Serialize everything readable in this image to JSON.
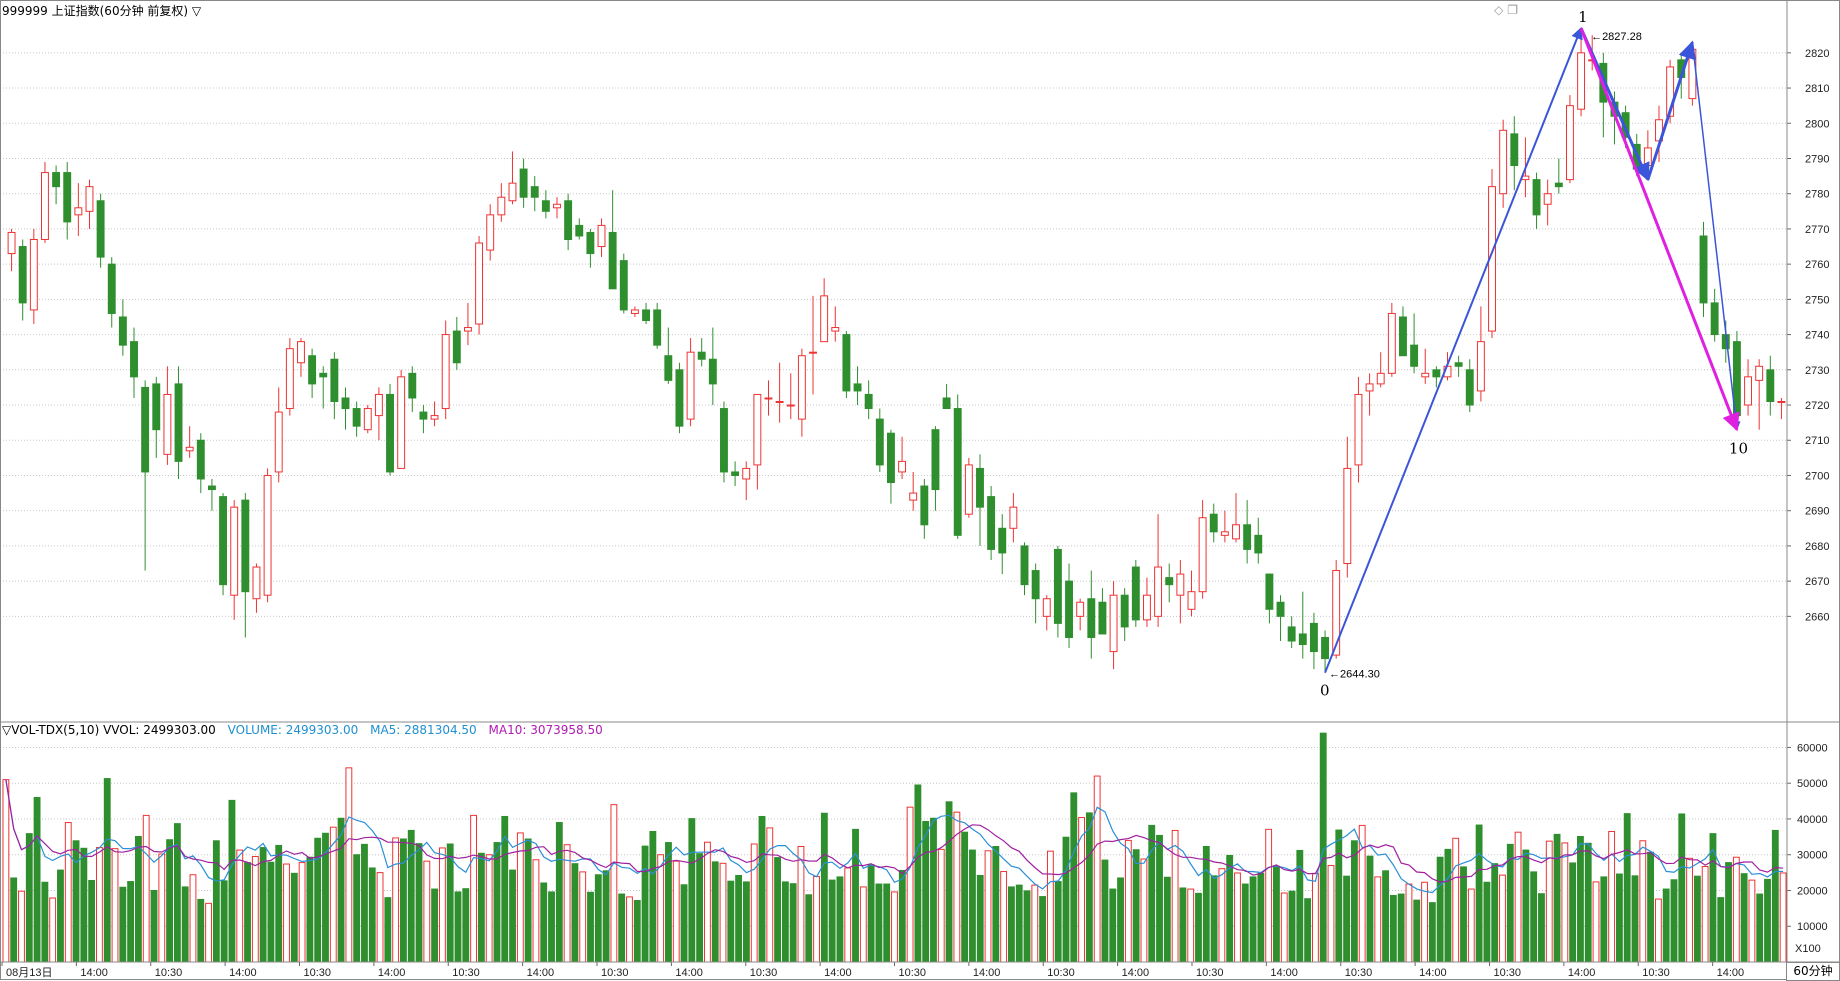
{
  "header": {
    "title": "999999 上证指数(60分钟 前复权) ▽"
  },
  "volume_legend": {
    "indicator": "▽VOL-TDX(5,10) VVOL: 2499303.00",
    "volume": "VOLUME: 2499303.00",
    "ma5": "MA5: 2881304.50",
    "ma10": "MA10: 3073958.50"
  },
  "period_badge": "60分钟",
  "volume_unit": "X100",
  "colors": {
    "up": "#ee3333",
    "down": "#2f8f2f",
    "ma5": "#2a8fd6",
    "ma10": "#a020a0",
    "wave_blue": "#3a55d9",
    "wave_magenta": "#e020e0",
    "grid": "#c8c8c8"
  },
  "chart_data": [
    {
      "type": "candlestick",
      "title": "999999 上证指数(60分钟 前复权) ▽",
      "ylim": [
        2630,
        2835
      ],
      "y_ticks": [
        2660,
        2670,
        2680,
        2690,
        2700,
        2710,
        2720,
        2730,
        2740,
        2750,
        2760,
        2770,
        2780,
        2790,
        2800,
        2810,
        2820
      ],
      "x_tick_labels": [
        "08月13日",
        "14:00",
        "10:30",
        "14:00",
        "10:30",
        "14:00",
        "10:30",
        "14:00",
        "10:30",
        "14:00",
        "10:30",
        "14:00",
        "10:30",
        "14:00",
        "10:30",
        "14:00",
        "10:30",
        "14:00",
        "10:30",
        "14:00",
        "10:30",
        "14:00",
        "10:30",
        "14:00"
      ],
      "grid": true,
      "candles": [
        [
          2763,
          2769,
          2770,
          2758
        ],
        [
          2765,
          2749,
          2767,
          2744
        ],
        [
          2747,
          2767,
          2770,
          2743
        ],
        [
          2767,
          2786,
          2789,
          2766
        ],
        [
          2786,
          2782,
          2788,
          2777
        ],
        [
          2786,
          2772,
          2789,
          2767
        ],
        [
          2774,
          2776,
          2783,
          2768
        ],
        [
          2775,
          2782,
          2784,
          2770
        ],
        [
          2778,
          2762,
          2780,
          2759
        ],
        [
          2760,
          2746,
          2762,
          2742
        ],
        [
          2745,
          2737,
          2750,
          2734
        ],
        [
          2738,
          2728,
          2742,
          2722
        ],
        [
          2725,
          2701,
          2727,
          2673
        ],
        [
          2726,
          2713,
          2728,
          2705
        ],
        [
          2706,
          2723,
          2731,
          2703
        ],
        [
          2726,
          2704,
          2731,
          2699
        ],
        [
          2707,
          2708,
          2714,
          2705
        ],
        [
          2710,
          2699,
          2712,
          2695
        ],
        [
          2697,
          2696,
          2699,
          2690
        ],
        [
          2694,
          2669,
          2695,
          2666
        ],
        [
          2666,
          2691,
          2693,
          2659
        ],
        [
          2693,
          2667,
          2695,
          2654
        ],
        [
          2665,
          2674,
          2675,
          2661
        ],
        [
          2666,
          2700,
          2702,
          2664
        ],
        [
          2701,
          2718,
          2725,
          2698
        ],
        [
          2719,
          2736,
          2739,
          2717
        ],
        [
          2732,
          2738,
          2739,
          2728
        ],
        [
          2734,
          2726,
          2736,
          2722
        ],
        [
          2729,
          2728,
          2731,
          2719
        ],
        [
          2733,
          2721,
          2735,
          2716
        ],
        [
          2722,
          2719,
          2725,
          2713
        ],
        [
          2719,
          2714,
          2721,
          2711
        ],
        [
          2713,
          2719,
          2720,
          2712
        ],
        [
          2717,
          2723,
          2725,
          2710
        ],
        [
          2723,
          2701,
          2726,
          2700
        ],
        [
          2702,
          2728,
          2730,
          2702
        ],
        [
          2729,
          2722,
          2731,
          2718
        ],
        [
          2718,
          2716,
          2720,
          2712
        ],
        [
          2716,
          2717,
          2721,
          2714
        ],
        [
          2719,
          2740,
          2744,
          2716
        ],
        [
          2741,
          2732,
          2745,
          2730
        ],
        [
          2741,
          2742,
          2749,
          2737
        ],
        [
          2743,
          2766,
          2768,
          2740
        ],
        [
          2764,
          2774,
          2777,
          2761
        ],
        [
          2774,
          2779,
          2783,
          2772
        ],
        [
          2778,
          2783,
          2792,
          2777
        ],
        [
          2787,
          2779,
          2790,
          2776
        ],
        [
          2782,
          2779,
          2785,
          2775
        ],
        [
          2778,
          2775,
          2781,
          2773
        ],
        [
          2776,
          2777,
          2779,
          2773
        ],
        [
          2778,
          2767,
          2780,
          2764
        ],
        [
          2771,
          2768,
          2773,
          2767
        ],
        [
          2769,
          2763,
          2770,
          2759
        ],
        [
          2765,
          2771,
          2773,
          2762
        ],
        [
          2769,
          2753,
          2781,
          2761
        ],
        [
          2761,
          2747,
          2763,
          2746
        ],
        [
          2746,
          2747,
          2748,
          2745
        ],
        [
          2747,
          2744,
          2749,
          2743
        ],
        [
          2747,
          2737,
          2749,
          2736
        ],
        [
          2734,
          2727,
          2742,
          2726
        ],
        [
          2730,
          2714,
          2732,
          2712
        ],
        [
          2716,
          2735,
          2739,
          2714
        ],
        [
          2735,
          2733,
          2739,
          2731
        ],
        [
          2733,
          2726,
          2742,
          2720
        ],
        [
          2719,
          2701,
          2721,
          2698
        ],
        [
          2701,
          2700,
          2704,
          2697
        ],
        [
          2699,
          2702,
          2704,
          2693
        ],
        [
          2703,
          2723,
          2723,
          2696
        ],
        [
          2722,
          2722,
          2727,
          2717
        ],
        [
          2721,
          2721,
          2732,
          2715
        ],
        [
          2720,
          2720,
          2729,
          2716
        ],
        [
          2716,
          2734,
          2736,
          2711
        ],
        [
          2735,
          2735,
          2751,
          2723
        ],
        [
          2738,
          2751,
          2756,
          2746
        ],
        [
          2741,
          2742,
          2748,
          2738
        ],
        [
          2740,
          2724,
          2741,
          2722
        ],
        [
          2726,
          2724,
          2731,
          2720
        ],
        [
          2723,
          2719,
          2727,
          2716
        ],
        [
          2716,
          2703,
          2719,
          2701
        ],
        [
          2712,
          2698,
          2713,
          2692
        ],
        [
          2701,
          2704,
          2711,
          2699
        ],
        [
          2693,
          2695,
          2701,
          2690
        ],
        [
          2697,
          2686,
          2699,
          2682
        ],
        [
          2713,
          2696,
          2714,
          2690
        ],
        [
          2722,
          2719,
          2726,
          2719
        ],
        [
          2719,
          2683,
          2723,
          2682
        ],
        [
          2689,
          2703,
          2705,
          2688
        ],
        [
          2702,
          2691,
          2706,
          2680
        ],
        [
          2694,
          2679,
          2697,
          2676
        ],
        [
          2685,
          2678,
          2689,
          2672
        ],
        [
          2685,
          2691,
          2695,
          2681
        ],
        [
          2680,
          2669,
          2681,
          2666
        ],
        [
          2673,
          2665,
          2675,
          2658
        ],
        [
          2660,
          2665,
          2666,
          2656
        ],
        [
          2679,
          2658,
          2680,
          2654
        ],
        [
          2670,
          2654,
          2675,
          2651
        ],
        [
          2660,
          2664,
          2665,
          2656
        ],
        [
          2665,
          2654,
          2673,
          2648
        ],
        [
          2664,
          2655,
          2668,
          2655
        ],
        [
          2650,
          2666,
          2670,
          2645
        ],
        [
          2666,
          2657,
          2668,
          2653
        ],
        [
          2674,
          2659,
          2676,
          2657
        ],
        [
          2659,
          2666,
          2671,
          2657
        ],
        [
          2660,
          2674,
          2689,
          2657
        ],
        [
          2671,
          2669,
          2675,
          2664
        ],
        [
          2666,
          2672,
          2676,
          2658
        ],
        [
          2662,
          2667,
          2673,
          2660
        ],
        [
          2667,
          2688,
          2693,
          2665
        ],
        [
          2689,
          2684,
          2692,
          2681
        ],
        [
          2683,
          2684,
          2690,
          2681
        ],
        [
          2682,
          2686,
          2695,
          2681
        ],
        [
          2686,
          2679,
          2693,
          2675
        ],
        [
          2683,
          2678,
          2688,
          2675
        ],
        [
          2672,
          2662,
          2671,
          2658
        ],
        [
          2664,
          2660,
          2666,
          2653
        ],
        [
          2657,
          2653,
          2660,
          2651
        ],
        [
          2655,
          2652,
          2667,
          2648
        ],
        [
          2658,
          2650,
          2661,
          2645
        ],
        [
          2654,
          2648,
          2656,
          2644
        ],
        [
          2649,
          2673,
          2676,
          2648
        ],
        [
          2675,
          2702,
          2711,
          2671
        ],
        [
          2703,
          2723,
          2728,
          2698
        ],
        [
          2724,
          2726,
          2729,
          2717
        ],
        [
          2726,
          2729,
          2735,
          2725
        ],
        [
          2729,
          2746,
          2749,
          2728
        ],
        [
          2745,
          2734,
          2748,
          2734
        ],
        [
          2737,
          2731,
          2746,
          2729
        ],
        [
          2728,
          2729,
          2736,
          2726
        ],
        [
          2730,
          2728,
          2731,
          2725
        ],
        [
          2728,
          2731,
          2735,
          2727
        ],
        [
          2732,
          2731,
          2734,
          2728
        ],
        [
          2730,
          2720,
          2733,
          2718
        ],
        [
          2724,
          2738,
          2748,
          2721
        ],
        [
          2741,
          2782,
          2787,
          2739
        ],
        [
          2780,
          2798,
          2801,
          2776
        ],
        [
          2797,
          2788,
          2802,
          2781
        ],
        [
          2784,
          2785,
          2796,
          2779
        ],
        [
          2784,
          2774,
          2786,
          2770
        ],
        [
          2777,
          2780,
          2784,
          2771
        ],
        [
          2783,
          2782,
          2790,
          2780
        ],
        [
          2784,
          2805,
          2808,
          2783
        ],
        [
          2804,
          2820,
          2827,
          2802
        ],
        [
          2818,
          2818,
          2825,
          2815
        ],
        [
          2817,
          2806,
          2820,
          2796
        ],
        [
          2806,
          2802,
          2809,
          2794
        ],
        [
          2803,
          2796,
          2805,
          2793
        ],
        [
          2794,
          2787,
          2797,
          2785
        ],
        [
          2788,
          2793,
          2798,
          2784
        ],
        [
          2795,
          2801,
          2805,
          2789
        ],
        [
          2802,
          2816,
          2818,
          2800
        ],
        [
          2818,
          2813,
          2820,
          2807
        ],
        [
          2807,
          2821,
          2823,
          2805
        ],
        [
          2768,
          2749,
          2772,
          2745
        ],
        [
          2749,
          2740,
          2753,
          2738
        ],
        [
          2740,
          2736,
          2744,
          2732
        ],
        [
          2738,
          2717,
          2741,
          2713
        ],
        [
          2720,
          2728,
          2733,
          2717
        ],
        [
          2727,
          2731,
          2733,
          2713
        ],
        [
          2730,
          2721,
          2734,
          2717
        ],
        [
          2721,
          2721,
          2722,
          2716
        ]
      ],
      "annotations": [
        {
          "label": "1",
          "value_label": "2827.28"
        },
        {
          "label": "0",
          "value_label": "2644.30"
        },
        {
          "label": "10",
          "value_label": ""
        }
      ]
    },
    {
      "type": "bar",
      "title": "▽VOL-TDX(5,10)",
      "ylim": [
        0,
        66000
      ],
      "y_ticks": [
        10000,
        20000,
        30000,
        40000,
        50000,
        60000
      ],
      "series": [
        {
          "name": "VOLUME",
          "values": [
            51000,
            23500,
            19800,
            35900,
            46000,
            22300,
            17900,
            25700,
            39000,
            33900,
            31800,
            22800,
            32000,
            51300,
            31700,
            20900,
            22500,
            35100,
            41000,
            20000,
            30200,
            34200,
            38700,
            21000,
            24400,
            17500,
            16400,
            33900,
            22700,
            45200,
            31300,
            27800,
            29500,
            32000,
            27900,
            32600,
            27400,
            24800,
            27800,
            29300,
            34600,
            36000,
            37700,
            40200,
            54300,
            30000,
            32900,
            26300,
            25000,
            18000,
            34700,
            34400,
            36800,
            33100,
            28200,
            20400,
            31900,
            33000,
            19600,
            20500,
            41000,
            30400,
            30000,
            33400,
            40700,
            25700,
            36100,
            34400,
            28600,
            22100,
            19600,
            39000,
            32800,
            27500,
            25200,
            19500,
            24400,
            25500,
            44000,
            19000,
            18200,
            17200,
            32400,
            36500,
            30000,
            33400,
            28200,
            21600,
            40100,
            30300,
            33500,
            28000,
            27600,
            22600,
            24200,
            22400,
            33000,
            40700,
            37500,
            29200,
            22400,
            21900,
            32300,
            18800,
            23900,
            41600,
            22900,
            23800,
            26300,
            37100,
            21000,
            27200,
            21800,
            21800,
            19600,
            25600,
            43300,
            49500,
            39300,
            40200,
            31500,
            44800,
            41900,
            36300,
            31300,
            24200,
            31100,
            32300,
            25300,
            21000,
            21500,
            19900,
            21500,
            18300,
            31000,
            22500,
            34900,
            47300,
            40400,
            41700,
            52000,
            28500,
            20400,
            23500,
            34000,
            31400,
            28800,
            38200,
            35400,
            23700,
            36800,
            20700,
            20400,
            19200,
            32300,
            24100,
            26100,
            29800,
            24900,
            21800,
            23800,
            24800,
            37100,
            26800,
            19300,
            19800,
            31200,
            17700,
            24800,
            64000,
            27000,
            36900,
            24000,
            33900,
            38200,
            29600,
            23800,
            25500,
            18600,
            19000,
            21800,
            17300,
            22300,
            16600,
            29300,
            31500,
            34600,
            26600,
            20400,
            38300,
            22300,
            27500,
            24300,
            32900,
            36300,
            31300,
            25200,
            19100,
            33800,
            35700,
            33300,
            27700,
            35100,
            33200,
            22400,
            23800,
            36500,
            24600,
            41500,
            24100,
            33900,
            30700,
            17600,
            20400,
            23000,
            41400,
            29000,
            24000,
            26700,
            35900,
            18000,
            27800,
            29300,
            24700,
            22900,
            19000,
            23100,
            36800,
            24900
          ]
        },
        {
          "name": "MA5",
          "values": []
        },
        {
          "name": "MA10",
          "values": []
        }
      ],
      "unit": "X100"
    }
  ]
}
